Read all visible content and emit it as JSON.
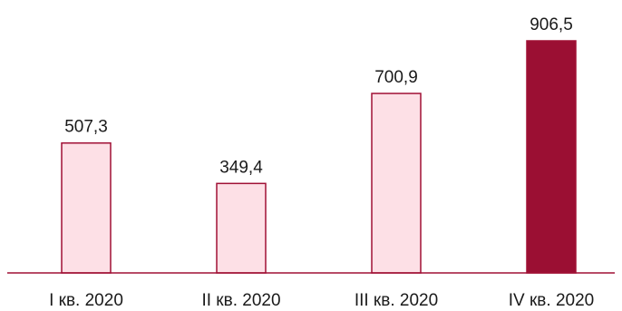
{
  "chart_data": {
    "type": "bar",
    "title": "",
    "xlabel": "",
    "ylabel": "",
    "categories": [
      "I кв. 2020",
      "II кв. 2020",
      "III кв. 2020",
      "IV кв. 2020"
    ],
    "values": [
      507.3,
      349.4,
      700.9,
      906.5
    ],
    "value_labels": [
      "507,3",
      "349,4",
      "700,9",
      "906,5"
    ],
    "ylim": [
      0,
      906.5
    ],
    "grid": false,
    "legend": "none",
    "highlight_index": 3,
    "colors": {
      "bar_fill": "#fde0e6",
      "bar_stroke": "#a01035",
      "highlight_fill": "#9b0f33",
      "axis": "#a01035"
    }
  }
}
